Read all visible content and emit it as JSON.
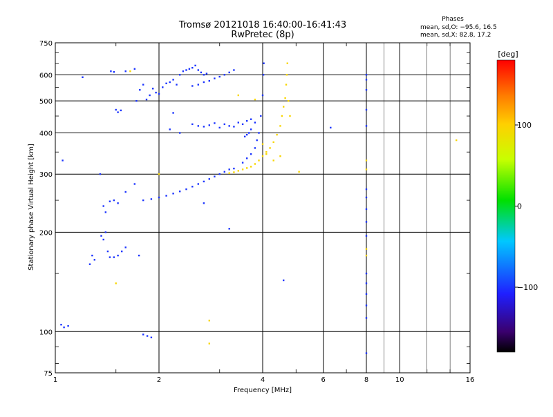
{
  "chart_data": {
    "type": "scatter",
    "title": "Tromsø 20121018 16:40:00-16:41:43",
    "subtitle": "RwPretec (8p)",
    "xlabel": "Frequency [MHz]",
    "ylabel": "Stationary phase Virtual Height [km]",
    "x_scale": "log",
    "y_scale": "log",
    "xlim": [
      1,
      16
    ],
    "ylim": [
      75,
      750
    ],
    "x_ticks": [
      1,
      2,
      4,
      6,
      8,
      10,
      16
    ],
    "x_tick_labels": [
      "1",
      "2",
      "4",
      "6",
      "8",
      "10",
      "16"
    ],
    "y_ticks": [
      75,
      100,
      200,
      300,
      400,
      500,
      600,
      750
    ],
    "y_tick_labels": [
      "75",
      "100",
      "200",
      "300",
      "400",
      "500",
      "600",
      "750"
    ],
    "grid": true,
    "phases_box": {
      "title": "Phases",
      "line1": "mean, sd,O: −95.6, 16.5",
      "line2": "mean, sd,X: 82.8, 17.2"
    },
    "colorbar": {
      "label": "[deg]",
      "range": [
        -180,
        180
      ],
      "ticks": [
        100,
        0,
        -100
      ],
      "tick_labels": [
        "100",
        "0",
        "−100"
      ]
    },
    "series": [
      {
        "mode": "O",
        "color_phase_deg": -100,
        "points": [
          [
            1.04,
            105
          ],
          [
            1.06,
            103
          ],
          [
            1.09,
            104
          ],
          [
            1.26,
            160
          ],
          [
            1.28,
            170
          ],
          [
            1.3,
            165
          ],
          [
            1.36,
            195
          ],
          [
            1.38,
            190
          ],
          [
            1.4,
            200
          ],
          [
            1.42,
            175
          ],
          [
            1.44,
            168
          ],
          [
            1.48,
            168
          ],
          [
            1.52,
            170
          ],
          [
            1.56,
            175
          ],
          [
            1.6,
            180
          ],
          [
            1.38,
            240
          ],
          [
            1.4,
            230
          ],
          [
            1.44,
            248
          ],
          [
            1.48,
            250
          ],
          [
            1.52,
            245
          ],
          [
            1.45,
            615
          ],
          [
            1.48,
            612
          ],
          [
            1.5,
            470
          ],
          [
            1.52,
            462
          ],
          [
            1.55,
            468
          ],
          [
            1.72,
            500
          ],
          [
            1.76,
            540
          ],
          [
            1.8,
            560
          ],
          [
            1.84,
            505
          ],
          [
            1.88,
            520
          ],
          [
            1.92,
            545
          ],
          [
            1.96,
            530
          ],
          [
            2.0,
            525
          ],
          [
            2.05,
            550
          ],
          [
            2.1,
            565
          ],
          [
            2.15,
            570
          ],
          [
            2.2,
            580
          ],
          [
            2.25,
            560
          ],
          [
            2.3,
            600
          ],
          [
            2.35,
            615
          ],
          [
            2.4,
            620
          ],
          [
            2.45,
            625
          ],
          [
            2.5,
            630
          ],
          [
            2.55,
            640
          ],
          [
            2.6,
            620
          ],
          [
            2.65,
            610
          ],
          [
            2.7,
            600
          ],
          [
            2.75,
            605
          ],
          [
            2.5,
            555
          ],
          [
            2.6,
            560
          ],
          [
            2.7,
            570
          ],
          [
            2.8,
            575
          ],
          [
            2.9,
            585
          ],
          [
            3.0,
            592
          ],
          [
            3.1,
            600
          ],
          [
            3.2,
            610
          ],
          [
            3.3,
            620
          ],
          [
            2.5,
            425
          ],
          [
            2.6,
            420
          ],
          [
            2.7,
            418
          ],
          [
            2.8,
            422
          ],
          [
            2.9,
            428
          ],
          [
            3.0,
            415
          ],
          [
            3.1,
            425
          ],
          [
            3.2,
            420
          ],
          [
            3.3,
            418
          ],
          [
            3.4,
            430
          ],
          [
            3.5,
            425
          ],
          [
            3.6,
            435
          ],
          [
            3.7,
            440
          ],
          [
            1.8,
            250
          ],
          [
            1.9,
            252
          ],
          [
            2.0,
            255
          ],
          [
            2.1,
            258
          ],
          [
            2.2,
            262
          ],
          [
            2.3,
            266
          ],
          [
            2.4,
            270
          ],
          [
            2.5,
            275
          ],
          [
            2.6,
            280
          ],
          [
            2.7,
            285
          ],
          [
            2.8,
            290
          ],
          [
            2.9,
            295
          ],
          [
            3.0,
            300
          ],
          [
            3.1,
            305
          ],
          [
            3.2,
            310
          ],
          [
            3.3,
            312
          ],
          [
            3.5,
            325
          ],
          [
            3.6,
            335
          ],
          [
            3.7,
            345
          ],
          [
            3.8,
            360
          ],
          [
            3.85,
            380
          ],
          [
            3.9,
            400
          ],
          [
            3.95,
            450
          ],
          [
            4.0,
            520
          ],
          [
            4.02,
            600
          ],
          [
            4.03,
            650
          ],
          [
            3.55,
            390
          ],
          [
            3.6,
            395
          ],
          [
            3.65,
            400
          ],
          [
            3.7,
            410
          ],
          [
            3.8,
            430
          ],
          [
            2.15,
            410
          ],
          [
            2.2,
            460
          ],
          [
            2.3,
            400
          ],
          [
            1.75,
            170
          ],
          [
            1.8,
            98
          ],
          [
            1.85,
            97
          ],
          [
            1.9,
            96
          ],
          [
            1.35,
            300
          ],
          [
            1.6,
            265
          ],
          [
            1.7,
            280
          ],
          [
            4.6,
            143
          ],
          [
            8.0,
            600
          ],
          [
            8.0,
            580
          ],
          [
            8.0,
            540
          ],
          [
            8.0,
            470
          ],
          [
            8.0,
            420
          ],
          [
            8.0,
            270
          ],
          [
            8.0,
            255
          ],
          [
            8.0,
            235
          ],
          [
            8.0,
            215
          ],
          [
            8.0,
            195
          ],
          [
            8.0,
            150
          ],
          [
            8.0,
            140
          ],
          [
            8.0,
            130
          ],
          [
            8.0,
            120
          ],
          [
            8.0,
            110
          ],
          [
            8.0,
            86
          ],
          [
            3.2,
            205
          ],
          [
            2.7,
            245
          ],
          [
            1.6,
            615
          ],
          [
            1.7,
            625
          ],
          [
            1.2,
            590
          ],
          [
            1.05,
            330
          ],
          [
            6.3,
            415
          ]
        ]
      },
      {
        "mode": "X",
        "color_phase_deg": 95,
        "points": [
          [
            3.2,
            302
          ],
          [
            3.3,
            304
          ],
          [
            3.4,
            307
          ],
          [
            3.5,
            310
          ],
          [
            3.6,
            313
          ],
          [
            3.7,
            316
          ],
          [
            3.8,
            322
          ],
          [
            3.9,
            330
          ],
          [
            4.0,
            340
          ],
          [
            4.1,
            350
          ],
          [
            4.2,
            360
          ],
          [
            4.3,
            375
          ],
          [
            4.4,
            395
          ],
          [
            4.5,
            420
          ],
          [
            4.55,
            450
          ],
          [
            4.6,
            480
          ],
          [
            4.65,
            510
          ],
          [
            4.68,
            560
          ],
          [
            4.7,
            600
          ],
          [
            4.72,
            650
          ],
          [
            4.75,
            500
          ],
          [
            4.8,
            450
          ],
          [
            2.8,
            92
          ],
          [
            2.8,
            108
          ],
          [
            1.65,
            615
          ],
          [
            3.4,
            520
          ],
          [
            2.0,
            300
          ],
          [
            1.5,
            140
          ],
          [
            14.6,
            380
          ],
          [
            3.8,
            505
          ],
          [
            4.0,
            370
          ],
          [
            4.1,
            345
          ],
          [
            4.5,
            340
          ],
          [
            4.3,
            330
          ],
          [
            8.0,
            330
          ],
          [
            8.0,
            310
          ],
          [
            8.0,
            178
          ],
          [
            8.0,
            170
          ],
          [
            5.1,
            305
          ]
        ]
      }
    ]
  }
}
